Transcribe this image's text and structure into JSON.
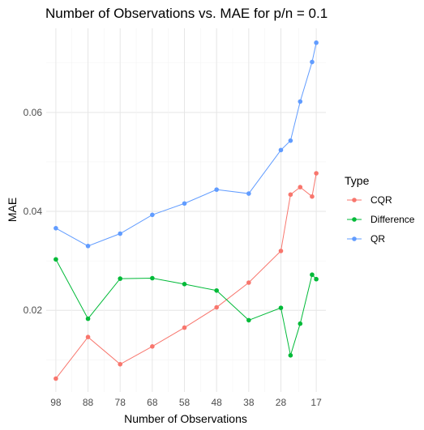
{
  "chart_data": {
    "type": "line",
    "title": "Number of Observations vs. MAE for p/n = 0.1",
    "xlabel": "Number of Observations",
    "ylabel": "MAE",
    "x_reversed": true,
    "xlim": [
      14,
      101
    ],
    "ylim": [
      0.0035,
      0.077
    ],
    "x_ticks": [
      98,
      88,
      78,
      68,
      58,
      48,
      38,
      28,
      17
    ],
    "x_tick_labels": [
      "98",
      "88",
      "78",
      "68",
      "58",
      "48",
      "38",
      "28",
      "17"
    ],
    "y_ticks": [
      0.02,
      0.04,
      0.06
    ],
    "y_tick_labels": [
      "0.02",
      "0.04",
      "0.06"
    ],
    "grid": true,
    "legend": {
      "title": "Type",
      "placement": "right"
    },
    "series": [
      {
        "name": "CQR",
        "color": "#F8766D",
        "points": [
          [
            98,
            0.0062
          ],
          [
            88,
            0.0146
          ],
          [
            78,
            0.0091
          ],
          [
            68,
            0.0127
          ],
          [
            58,
            0.0165
          ],
          [
            48,
            0.0206
          ],
          [
            38,
            0.0256
          ],
          [
            28,
            0.032
          ],
          [
            25,
            0.0434
          ],
          [
            22,
            0.0449
          ],
          [
            18.3,
            0.043
          ],
          [
            17,
            0.0477
          ]
        ]
      },
      {
        "name": "Difference",
        "color": "#00BA38",
        "points": [
          [
            98,
            0.0303
          ],
          [
            88,
            0.0183
          ],
          [
            78,
            0.0264
          ],
          [
            68,
            0.0265
          ],
          [
            58,
            0.0253
          ],
          [
            48,
            0.024
          ],
          [
            38,
            0.018
          ],
          [
            28,
            0.0205
          ],
          [
            25,
            0.0109
          ],
          [
            22,
            0.0173
          ],
          [
            18.3,
            0.0272
          ],
          [
            17,
            0.0263
          ]
        ]
      },
      {
        "name": "QR",
        "color": "#619CFF",
        "points": [
          [
            98,
            0.0366
          ],
          [
            88,
            0.033
          ],
          [
            78,
            0.0355
          ],
          [
            68,
            0.0393
          ],
          [
            58,
            0.0416
          ],
          [
            48,
            0.0444
          ],
          [
            38,
            0.0436
          ],
          [
            28,
            0.0524
          ],
          [
            25,
            0.0543
          ],
          [
            22,
            0.0622
          ],
          [
            18.3,
            0.0702
          ],
          [
            17,
            0.0741
          ]
        ]
      }
    ]
  }
}
